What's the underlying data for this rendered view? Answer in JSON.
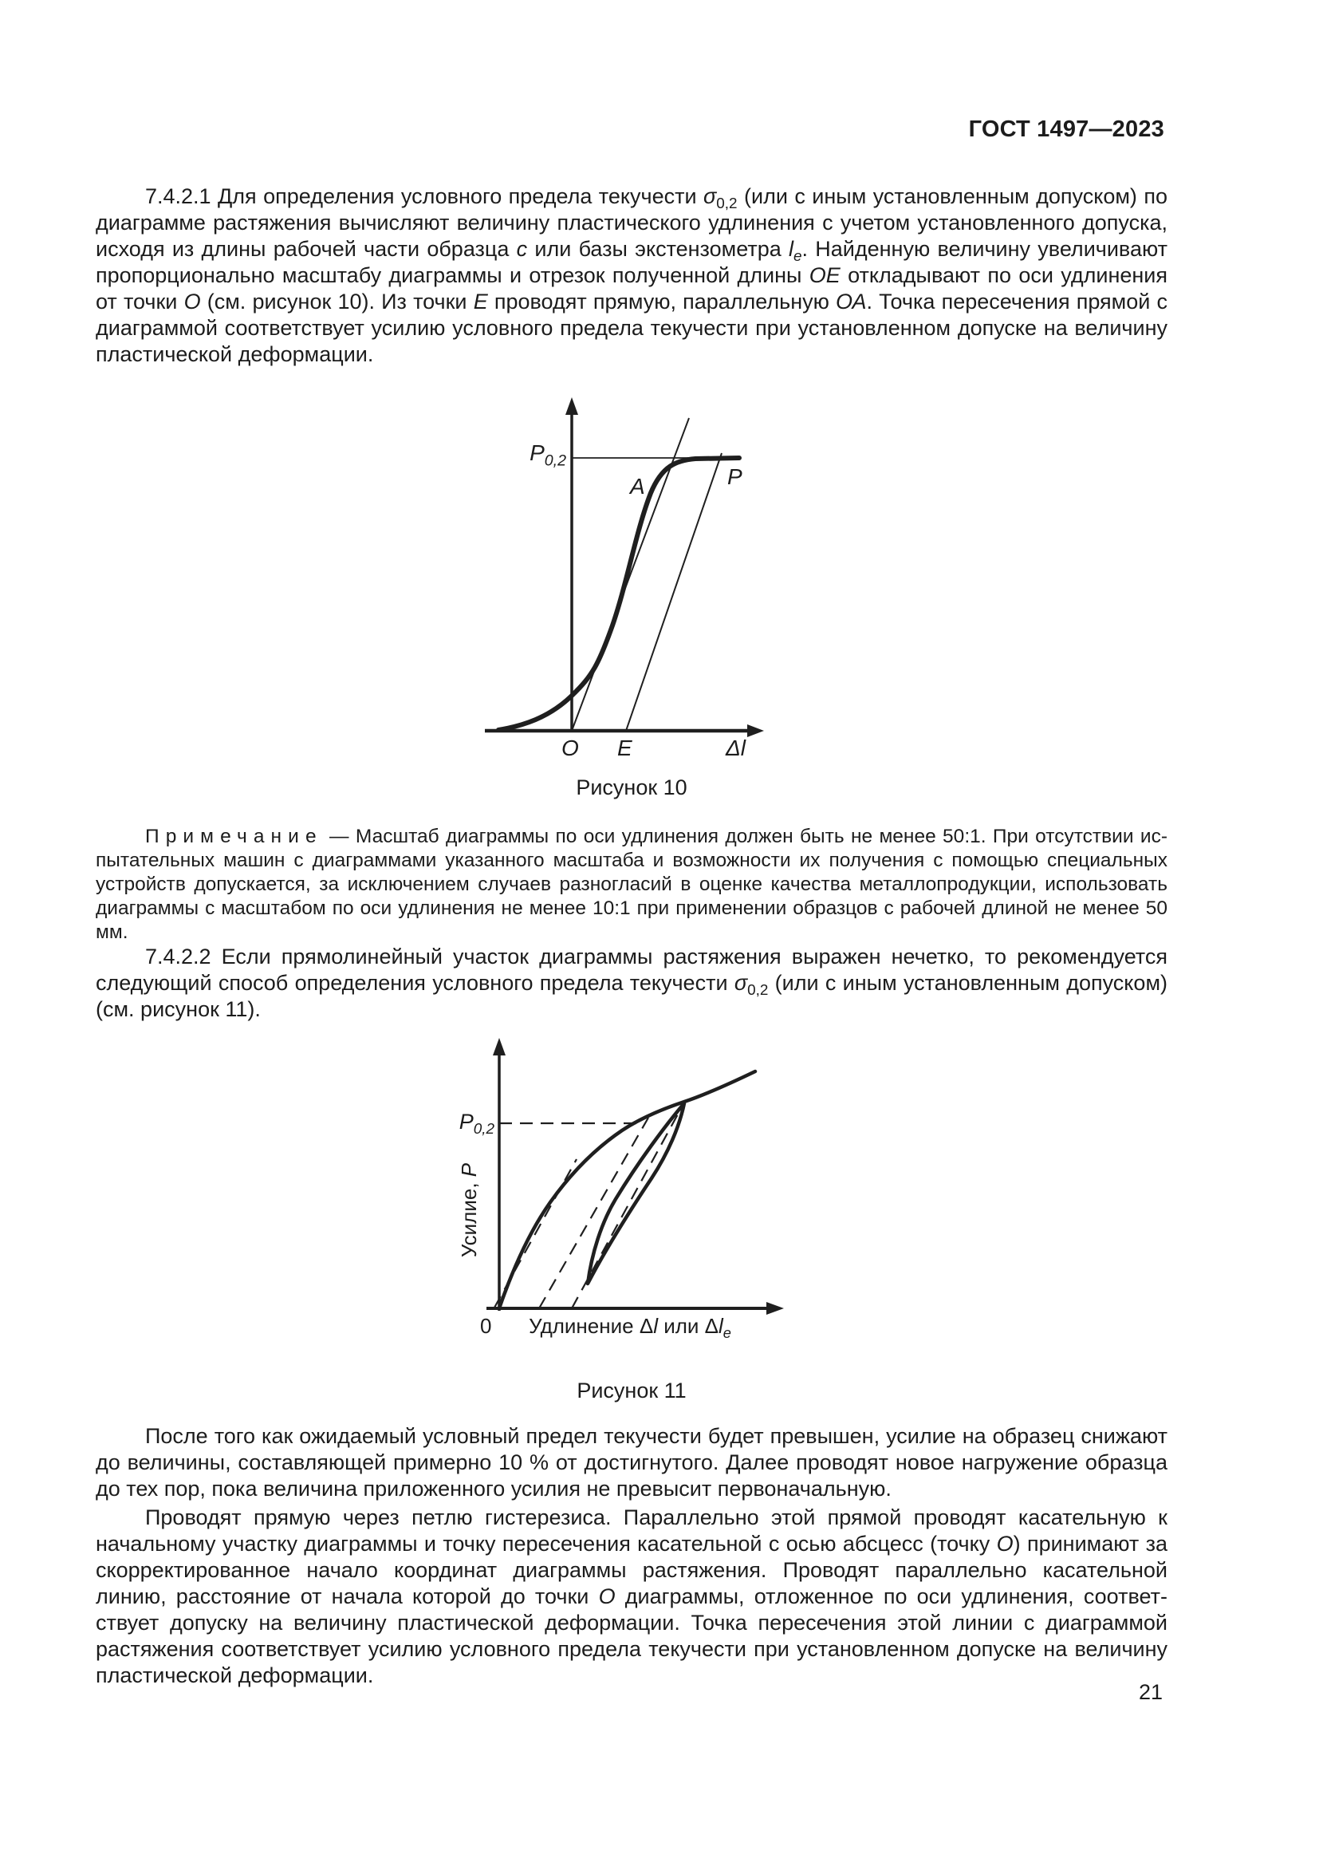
{
  "doc": {
    "code": "ГОСТ 1497—2023",
    "page_number": "21"
  },
  "content": {
    "p_7_4_2_1": {
      "runs": [
        {
          "t": "7.4.2.1 Для определения условного предела текучести "
        },
        {
          "t": "σ",
          "i": true
        },
        {
          "t": "0,2",
          "sub": true
        },
        {
          "t": " (или с иным установленным допуском) по диаграмме растяжения вычисляют величину пластического удлинения с учетом установленного до­пуска, исходя из длины рабочей части образца "
        },
        {
          "t": "c",
          "i": true
        },
        {
          "t": " или базы экстензометра "
        },
        {
          "t": "l",
          "i": true
        },
        {
          "t": "е",
          "sub": true,
          "i": true
        },
        {
          "t": ". Найденную величину уве­личивают пропорционально масштабу диаграммы и отрезок полученной длины "
        },
        {
          "t": "ОЕ",
          "i": true
        },
        {
          "t": " откладывают по оси удлинения от точки "
        },
        {
          "t": "О",
          "i": true
        },
        {
          "t": " (см. рисунок 10). Из точки "
        },
        {
          "t": "Е",
          "i": true
        },
        {
          "t": " проводят прямую, параллельную "
        },
        {
          "t": "ОА",
          "i": true
        },
        {
          "t": ". Точка пере­сечения прямой с диаграммой соответствует усилию условного предела текучести при установленном допуске на величину пластической деформации."
        }
      ]
    },
    "note": {
      "label": "Примечание",
      "runs": [
        {
          "t": " — Масштаб диаграммы по оси удлинения должен быть не менее 50:1. При отсутствии ис­пытательных машин с диаграммами указанного масштаба и возможности их получения с помощью специальных устройств допускается, за исключением случаев разногласий в оценке качества металлопродукции, использовать ди­аграммы с масштабом по оси удлинения не менее 10:1 при применении образцов с рабочей длиной не менее 50 мм."
        }
      ]
    },
    "p_7_4_2_2": {
      "runs": [
        {
          "t": "7.4.2.2 Если прямолинейный участок диаграммы растяжения выражен нечетко, то рекомендуется следующий способ определения условного предела текучести "
        },
        {
          "t": "σ",
          "i": true
        },
        {
          "t": "0,2",
          "sub": true
        },
        {
          "t": " (или с иным установленным допу­ском) (см. рисунок 11)."
        }
      ]
    },
    "p_unloading": {
      "runs": [
        {
          "t": "После того как ожидаемый условный предел текучести будет превышен, усилие на образец сни­жают до величины, составляющей примерно 10 % от достигнутого. Далее проводят новое нагружение образца до тех пор, пока величина приложенного усилия не превысит первоначальную."
        }
      ]
    },
    "p_hysteresis": {
      "runs": [
        {
          "t": "Проводят прямую через петлю гистерезиса. Параллельно этой прямой проводят касательную к начальному участку диаграммы и точку пересечения касательной с осью абсцесс (точку "
        },
        {
          "t": "О",
          "i": true
        },
        {
          "t": ") принимают за скорректированное начало координат диаграммы растяжения. Проводят параллельно касательной линию, расстояние от начала которой до точки "
        },
        {
          "t": "О",
          "i": true
        },
        {
          "t": " диаграммы, отложенное по оси удлинения, соответ­ствует допуску на величину пластической деформации. Точка пересечения этой линии с диаграммой растяжения соответствует усилию условного предела текучести при установленном допуске на величи­ну пластической деформации."
        }
      ]
    }
  },
  "figure10": {
    "caption": "Рисунок 10",
    "labels": {
      "p02": {
        "runs": [
          {
            "t": "P",
            "i": true
          },
          {
            "t": "0,2",
            "sub": true
          }
        ]
      },
      "point_a": "А",
      "point_p": "Р",
      "point_o": "О",
      "point_e": "Е",
      "x_axis": {
        "runs": [
          {
            "t": "Δ"
          },
          {
            "t": "l",
            "i": true
          }
        ]
      }
    }
  },
  "figure11": {
    "caption": "Рисунок 11",
    "labels": {
      "p02": {
        "runs": [
          {
            "t": "P",
            "i": true
          },
          {
            "t": "0,2",
            "sub": true
          }
        ]
      },
      "zero": "0",
      "y_axis": {
        "runs": [
          {
            "t": "Усилие, "
          },
          {
            "t": "P",
            "i": true
          }
        ]
      },
      "x_axis": {
        "runs": [
          {
            "t": "Удлинение "
          },
          {
            "t": "Δ"
          },
          {
            "t": "l",
            "i": true
          },
          {
            "t": " или "
          },
          {
            "t": "Δ"
          },
          {
            "t": "l",
            "i": true
          },
          {
            "t": "e",
            "sub": true,
            "i": true
          }
        ]
      }
    }
  }
}
